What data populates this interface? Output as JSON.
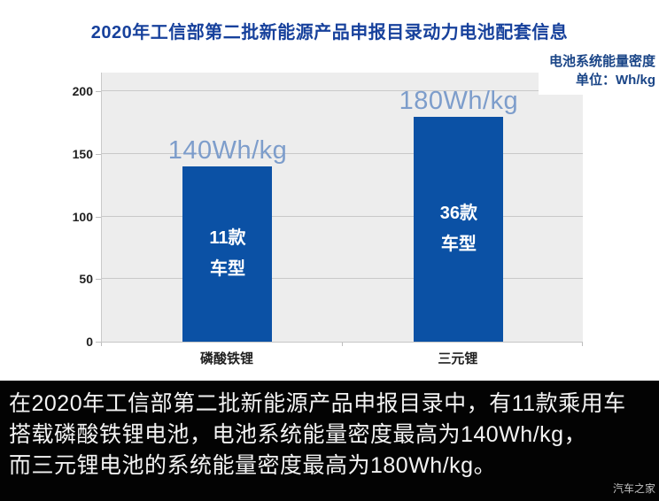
{
  "header": {
    "title": "2020年工信部第二批新能源产品申报目录动力电池配套信息",
    "legend_line1": "电池系统能量密度",
    "legend_line2": "单位：Wh/kg"
  },
  "chart_data": {
    "type": "bar",
    "title": "2020年工信部第二批新能源产品申报目录动力电池配套信息",
    "ylabel": "电池系统能量密度",
    "unit": "Wh/kg",
    "categories": [
      "磷酸铁锂",
      "三元锂"
    ],
    "values": [
      140,
      180
    ],
    "value_labels": [
      "140Wh/kg",
      "180Wh/kg"
    ],
    "bar_annotations": [
      [
        "11款",
        "车型"
      ],
      [
        "36款",
        "车型"
      ]
    ],
    "yticks": [
      0,
      50,
      100,
      150,
      200
    ],
    "ylim": [
      0,
      215
    ],
    "grid": true,
    "legend_position": "top-right",
    "bar_color": "#0B51A5",
    "value_label_color": "#7D9DCB"
  },
  "caption": {
    "lines": [
      "在2020年工信部第二批新能源产品申报目录中，有11款乘用车",
      "搭载磷酸铁锂电池，电池系统能量密度最高为140Wh/kg，",
      "而三元锂电池的系统能量密度最高为180Wh/kg。"
    ],
    "watermark": "汽车之家"
  },
  "colors": {
    "title_blue": "#17419C",
    "legend_blue": "#1A4587",
    "bar_blue": "#0B51A5",
    "value_label_blue": "#7D9DCB",
    "plot_background": "#EDEDED",
    "gridline": "#C9C9C9",
    "caption_background": "#030303",
    "caption_text": "#F3F3F3"
  }
}
